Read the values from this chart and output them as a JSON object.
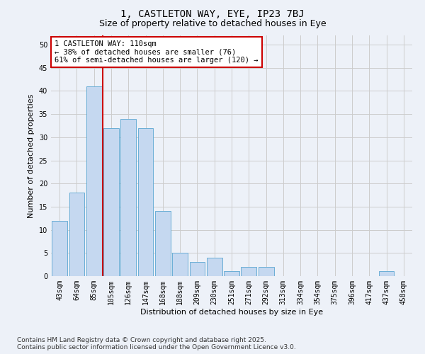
{
  "title_line1": "1, CASTLETON WAY, EYE, IP23 7BJ",
  "title_line2": "Size of property relative to detached houses in Eye",
  "xlabel": "Distribution of detached houses by size in Eye",
  "ylabel": "Number of detached properties",
  "categories": [
    "43sqm",
    "64sqm",
    "85sqm",
    "105sqm",
    "126sqm",
    "147sqm",
    "168sqm",
    "188sqm",
    "209sqm",
    "230sqm",
    "251sqm",
    "271sqm",
    "292sqm",
    "313sqm",
    "334sqm",
    "354sqm",
    "375sqm",
    "396sqm",
    "417sqm",
    "437sqm",
    "458sqm"
  ],
  "values": [
    12,
    18,
    41,
    32,
    34,
    32,
    14,
    5,
    3,
    4,
    1,
    2,
    2,
    0,
    0,
    0,
    0,
    0,
    0,
    1,
    0
  ],
  "bar_color": "#c5d8f0",
  "bar_edge_color": "#6aaed6",
  "vline_index": 2.5,
  "vline_color": "#cc0000",
  "annotation_text": "1 CASTLETON WAY: 110sqm\n← 38% of detached houses are smaller (76)\n61% of semi-detached houses are larger (120) →",
  "annotation_box_color": "#ffffff",
  "annotation_box_edge": "#cc0000",
  "ylim": [
    0,
    52
  ],
  "yticks": [
    0,
    5,
    10,
    15,
    20,
    25,
    30,
    35,
    40,
    45,
    50
  ],
  "grid_color": "#cccccc",
  "background_color": "#edf1f8",
  "footer_text": "Contains HM Land Registry data © Crown copyright and database right 2025.\nContains public sector information licensed under the Open Government Licence v3.0.",
  "title_fontsize": 10,
  "subtitle_fontsize": 9,
  "axis_label_fontsize": 8,
  "tick_fontsize": 7,
  "annotation_fontsize": 7.5,
  "footer_fontsize": 6.5
}
